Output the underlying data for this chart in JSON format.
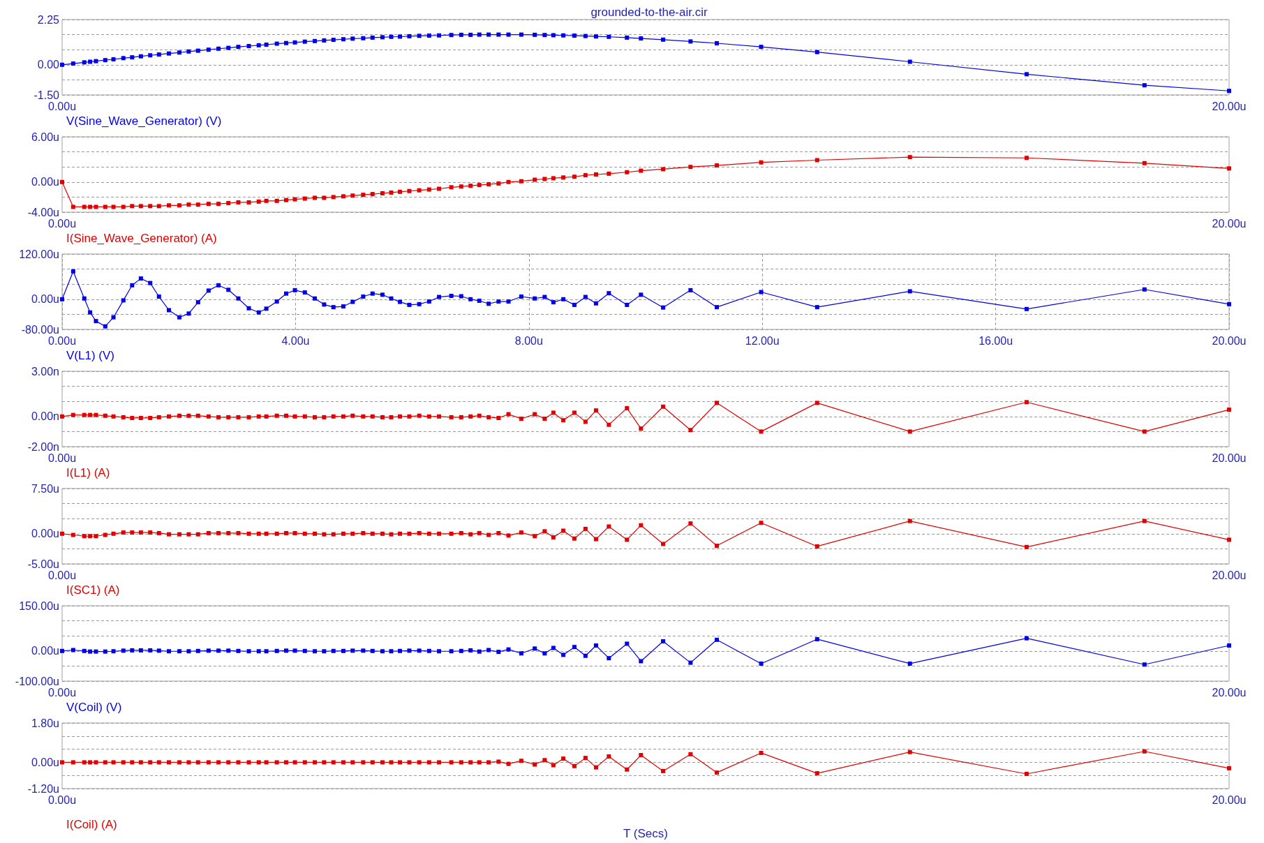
{
  "chart_data": [
    {
      "type": "line",
      "title": "grounded-to-the-air.cir",
      "marker": "square",
      "grid": "y",
      "legend": "bottom left",
      "xlim": [
        0,
        20
      ],
      "xticks": [
        {
          "value": 0,
          "label": "0.00u"
        },
        {
          "value": 20,
          "label": "20.00u"
        }
      ],
      "ylim": [
        -1.5,
        2.25
      ],
      "yticks": [
        {
          "value": -1.5,
          "label": "-1.50"
        },
        {
          "value": -0.75,
          "label": null
        },
        {
          "value": 0,
          "label": "0.00"
        },
        {
          "value": 0.75,
          "label": null
        },
        {
          "value": 1.5,
          "label": null
        },
        {
          "value": 2.25,
          "label": "2.25"
        }
      ],
      "x": [
        0,
        0.19,
        0.38,
        0.48,
        0.58,
        0.74,
        0.88,
        1.05,
        1.2,
        1.35,
        1.51,
        1.66,
        1.83,
        2.01,
        2.17,
        2.33,
        2.51,
        2.68,
        2.85,
        3.02,
        3.2,
        3.37,
        3.5,
        3.68,
        3.84,
        3.99,
        4.16,
        4.33,
        4.49,
        4.65,
        4.82,
        4.98,
        5.16,
        5.32,
        5.49,
        5.64,
        5.79,
        5.95,
        6.12,
        6.29,
        6.46,
        6.67,
        6.84,
        7.0,
        7.15,
        7.31,
        7.48,
        7.65,
        7.87,
        8.1,
        8.27,
        8.42,
        8.59,
        8.78,
        8.97,
        9.15,
        9.37,
        9.68,
        9.92,
        10.3,
        10.77,
        11.22,
        11.98,
        12.94,
        14.53,
        16.53,
        18.55,
        20
      ],
      "series": [
        {
          "name": "V(Sine_Wave_Generator) (V)",
          "color": "#0000e6",
          "values": [
            0,
            0.06,
            0.12,
            0.15,
            0.18,
            0.23,
            0.27,
            0.33,
            0.37,
            0.42,
            0.47,
            0.51,
            0.56,
            0.61,
            0.66,
            0.7,
            0.75,
            0.8,
            0.84,
            0.89,
            0.93,
            0.97,
            1.0,
            1.05,
            1.08,
            1.11,
            1.15,
            1.18,
            1.21,
            1.24,
            1.27,
            1.3,
            1.32,
            1.35,
            1.37,
            1.39,
            1.4,
            1.42,
            1.44,
            1.45,
            1.46,
            1.48,
            1.49,
            1.49,
            1.5,
            1.5,
            1.5,
            1.5,
            1.5,
            1.49,
            1.48,
            1.47,
            1.46,
            1.45,
            1.43,
            1.41,
            1.39,
            1.35,
            1.31,
            1.25,
            1.16,
            1.07,
            0.89,
            0.63,
            0.15,
            -0.47,
            -1.02,
            -1.3
          ]
        }
      ]
    },
    {
      "type": "line",
      "marker": "square",
      "grid": "y",
      "legend": "bottom left",
      "xlim": [
        0,
        20
      ],
      "xticks": [
        {
          "value": 0,
          "label": "0.00u"
        },
        {
          "value": 20,
          "label": "20.00u"
        }
      ],
      "ylim": [
        -4,
        6
      ],
      "yticks": [
        {
          "value": -4,
          "label": "-4.00u"
        },
        {
          "value": -2,
          "label": null
        },
        {
          "value": 0,
          "label": "0.00u"
        },
        {
          "value": 2,
          "label": null
        },
        {
          "value": 4,
          "label": null
        },
        {
          "value": 6,
          "label": "6.00u"
        }
      ],
      "x": [
        0,
        0.19,
        0.38,
        0.48,
        0.58,
        0.74,
        0.88,
        1.05,
        1.2,
        1.35,
        1.51,
        1.66,
        1.83,
        2.01,
        2.17,
        2.33,
        2.51,
        2.68,
        2.85,
        3.02,
        3.2,
        3.37,
        3.5,
        3.68,
        3.84,
        3.99,
        4.16,
        4.33,
        4.49,
        4.65,
        4.82,
        4.98,
        5.16,
        5.32,
        5.49,
        5.64,
        5.79,
        5.95,
        6.12,
        6.29,
        6.46,
        6.67,
        6.84,
        7.0,
        7.15,
        7.31,
        7.48,
        7.65,
        7.87,
        8.1,
        8.27,
        8.42,
        8.59,
        8.78,
        8.97,
        9.15,
        9.37,
        9.68,
        9.92,
        10.3,
        10.77,
        11.22,
        11.98,
        12.94,
        14.53,
        16.53,
        18.55,
        20
      ],
      "series": [
        {
          "name": "I(Sine_Wave_Generator) (A)",
          "color": "#e00000",
          "values": [
            0,
            -3.3,
            -3.3,
            -3.3,
            -3.3,
            -3.3,
            -3.3,
            -3.3,
            -3.2,
            -3.2,
            -3.2,
            -3.2,
            -3.1,
            -3.1,
            -3.0,
            -3.0,
            -2.9,
            -2.9,
            -2.8,
            -2.7,
            -2.7,
            -2.6,
            -2.5,
            -2.5,
            -2.4,
            -2.3,
            -2.2,
            -2.1,
            -2.1,
            -2.0,
            -1.9,
            -1.8,
            -1.7,
            -1.6,
            -1.5,
            -1.4,
            -1.3,
            -1.2,
            -1.1,
            -1.0,
            -0.9,
            -0.7,
            -0.6,
            -0.5,
            -0.4,
            -0.3,
            -0.2,
            0,
            0.1,
            0.3,
            0.4,
            0.5,
            0.6,
            0.7,
            0.9,
            1.0,
            1.1,
            1.3,
            1.5,
            1.7,
            2.0,
            2.2,
            2.6,
            2.9,
            3.3,
            3.2,
            2.5,
            1.8
          ]
        }
      ]
    },
    {
      "type": "line",
      "marker": "square",
      "grid": true,
      "legend": "bottom left",
      "xlim": [
        0,
        20
      ],
      "xticks": [
        {
          "value": 0,
          "label": "0.00u"
        },
        {
          "value": 4,
          "label": "4.00u"
        },
        {
          "value": 8,
          "label": "8.00u"
        },
        {
          "value": 12,
          "label": "12.00u"
        },
        {
          "value": 16,
          "label": "16.00u"
        },
        {
          "value": 20,
          "label": "20.00u"
        }
      ],
      "ylim": [
        -80,
        120
      ],
      "yticks": [
        {
          "value": -80,
          "label": "-80.00u"
        },
        {
          "value": -40,
          "label": null
        },
        {
          "value": 0,
          "label": "0.00u"
        },
        {
          "value": 40,
          "label": null
        },
        {
          "value": 80,
          "label": null
        },
        {
          "value": 120,
          "label": "120.00u"
        }
      ],
      "x": [
        0,
        0.19,
        0.38,
        0.48,
        0.58,
        0.74,
        0.88,
        1.05,
        1.2,
        1.35,
        1.51,
        1.66,
        1.83,
        2.01,
        2.17,
        2.33,
        2.51,
        2.68,
        2.85,
        3.02,
        3.2,
        3.37,
        3.5,
        3.68,
        3.84,
        3.99,
        4.16,
        4.33,
        4.49,
        4.65,
        4.82,
        4.98,
        5.16,
        5.32,
        5.49,
        5.64,
        5.79,
        5.95,
        6.12,
        6.29,
        6.46,
        6.67,
        6.84,
        7.0,
        7.15,
        7.31,
        7.48,
        7.65,
        7.87,
        8.1,
        8.27,
        8.42,
        8.59,
        8.78,
        8.97,
        9.15,
        9.37,
        9.68,
        9.92,
        10.3,
        10.77,
        11.22,
        11.98,
        12.94,
        14.53,
        16.53,
        18.55,
        20
      ],
      "series": [
        {
          "name": "V(L1) (V)",
          "color": "#0000e6",
          "values": [
            0,
            74,
            2,
            -35,
            -58,
            -72,
            -48,
            -3,
            37,
            55,
            43,
            7,
            -29,
            -48,
            -38,
            -8,
            23,
            37,
            25,
            2,
            -24,
            -35,
            -25,
            -6,
            15,
            24,
            18,
            2,
            -14,
            -21,
            -19,
            -7,
            7,
            15,
            12,
            2,
            -7,
            -15,
            -13,
            -6,
            6,
            9,
            8,
            0,
            -4,
            -12,
            -6,
            -6,
            7,
            2,
            6,
            -8,
            0,
            -15,
            6,
            -11,
            16,
            -15,
            12,
            -22,
            24,
            -21,
            19,
            -21,
            21,
            -26,
            26,
            -13
          ]
        }
      ]
    },
    {
      "type": "line",
      "marker": "square",
      "grid": "y",
      "legend": "bottom left",
      "xlim": [
        0,
        20
      ],
      "xticks": [
        {
          "value": 0,
          "label": "0.00u"
        },
        {
          "value": 20,
          "label": "20.00u"
        }
      ],
      "ylim": [
        -2,
        3
      ],
      "yticks": [
        {
          "value": -2,
          "label": "-2.00n"
        },
        {
          "value": -1,
          "label": null
        },
        {
          "value": 0,
          "label": "0.00n"
        },
        {
          "value": 1,
          "label": null
        },
        {
          "value": 2,
          "label": null
        },
        {
          "value": 3,
          "label": "3.00n"
        }
      ],
      "x": [
        0,
        0.19,
        0.38,
        0.48,
        0.58,
        0.74,
        0.88,
        1.05,
        1.2,
        1.35,
        1.51,
        1.66,
        1.83,
        2.01,
        2.17,
        2.33,
        2.51,
        2.68,
        2.85,
        3.02,
        3.2,
        3.37,
        3.5,
        3.68,
        3.84,
        3.99,
        4.16,
        4.33,
        4.49,
        4.65,
        4.82,
        4.98,
        5.16,
        5.32,
        5.49,
        5.64,
        5.79,
        5.95,
        6.12,
        6.29,
        6.46,
        6.67,
        6.84,
        7.0,
        7.15,
        7.31,
        7.48,
        7.65,
        7.87,
        8.1,
        8.27,
        8.42,
        8.59,
        8.78,
        8.97,
        9.15,
        9.37,
        9.68,
        9.92,
        10.3,
        10.77,
        11.22,
        11.98,
        12.94,
        14.53,
        16.53,
        18.55,
        20
      ],
      "series": [
        {
          "name": "I(L1) (A)",
          "color": "#e00000",
          "values": [
            0,
            0.1,
            0.1,
            0.1,
            0.1,
            0.05,
            0,
            -0.05,
            -0.1,
            -0.1,
            -0.1,
            -0.05,
            0,
            0.05,
            0.05,
            0.05,
            0,
            -0.05,
            -0.05,
            -0.05,
            -0.05,
            0,
            0,
            0.05,
            0.05,
            0,
            0,
            -0.05,
            -0.05,
            0,
            0,
            0.05,
            0,
            0,
            -0.05,
            -0.05,
            0,
            0,
            0.05,
            0,
            0,
            -0.05,
            -0.05,
            0,
            0.05,
            -0.05,
            -0.1,
            0.15,
            -0.15,
            0.15,
            -0.15,
            0.25,
            -0.25,
            0.25,
            -0.35,
            0.4,
            -0.55,
            0.55,
            -0.8,
            0.65,
            -0.9,
            0.9,
            -1.0,
            0.9,
            -1.0,
            0.95,
            -1.0,
            0.45
          ]
        }
      ]
    },
    {
      "type": "line",
      "marker": "square",
      "grid": "y",
      "legend": "bottom left",
      "xlim": [
        0,
        20
      ],
      "xticks": [
        {
          "value": 0,
          "label": "0.00u"
        },
        {
          "value": 20,
          "label": "20.00u"
        }
      ],
      "ylim": [
        -5,
        7.5
      ],
      "yticks": [
        {
          "value": -5,
          "label": "-5.00u"
        },
        {
          "value": -2.5,
          "label": null
        },
        {
          "value": 0,
          "label": "0.00u"
        },
        {
          "value": 2.5,
          "label": null
        },
        {
          "value": 5,
          "label": null
        },
        {
          "value": 7.5,
          "label": "7.50u"
        }
      ],
      "x": [
        0,
        0.19,
        0.38,
        0.48,
        0.58,
        0.74,
        0.88,
        1.05,
        1.2,
        1.35,
        1.51,
        1.66,
        1.83,
        2.01,
        2.17,
        2.33,
        2.51,
        2.68,
        2.85,
        3.02,
        3.2,
        3.37,
        3.5,
        3.68,
        3.84,
        3.99,
        4.16,
        4.33,
        4.49,
        4.65,
        4.82,
        4.98,
        5.16,
        5.32,
        5.49,
        5.64,
        5.79,
        5.95,
        6.12,
        6.29,
        6.46,
        6.67,
        6.84,
        7.0,
        7.15,
        7.31,
        7.48,
        7.65,
        7.87,
        8.1,
        8.27,
        8.42,
        8.59,
        8.78,
        8.97,
        9.15,
        9.37,
        9.68,
        9.92,
        10.3,
        10.77,
        11.22,
        11.98,
        12.94,
        14.53,
        16.53,
        18.55,
        20
      ],
      "series": [
        {
          "name": "I(SC1) (A)",
          "color": "#e00000",
          "values": [
            0,
            -0.2,
            -0.4,
            -0.4,
            -0.4,
            -0.2,
            0,
            0.2,
            0.2,
            0.2,
            0.2,
            0.1,
            -0.1,
            -0.1,
            -0.1,
            -0.1,
            0.1,
            0.1,
            0.1,
            0.1,
            0,
            0,
            0,
            0,
            0.1,
            0.1,
            0,
            0,
            -0.1,
            -0.1,
            0,
            0,
            0.1,
            0,
            0,
            -0.1,
            0,
            0,
            0.1,
            0,
            0,
            0,
            0.1,
            -0.1,
            0.1,
            -0.2,
            0.1,
            -0.3,
            0.2,
            -0.4,
            0.4,
            -0.6,
            0.5,
            -0.8,
            0.8,
            -0.9,
            1.2,
            -1.0,
            1.4,
            -1.7,
            1.7,
            -2.0,
            1.8,
            -2.1,
            2.1,
            -2.2,
            2.1,
            -1.0
          ]
        }
      ]
    },
    {
      "type": "line",
      "marker": "square",
      "grid": "y",
      "legend": "bottom left",
      "xlim": [
        0,
        20
      ],
      "xticks": [
        {
          "value": 0,
          "label": "0.00u"
        },
        {
          "value": 20,
          "label": "20.00u"
        }
      ],
      "ylim": [
        -100,
        150
      ],
      "yticks": [
        {
          "value": -100,
          "label": "-100.00u"
        },
        {
          "value": -50,
          "label": null
        },
        {
          "value": 0,
          "label": "0.00u"
        },
        {
          "value": 50,
          "label": null
        },
        {
          "value": 100,
          "label": null
        },
        {
          "value": 150,
          "label": "150.00u"
        }
      ],
      "x": [
        0,
        0.19,
        0.38,
        0.48,
        0.58,
        0.74,
        0.88,
        1.05,
        1.2,
        1.35,
        1.51,
        1.66,
        1.83,
        2.01,
        2.17,
        2.33,
        2.51,
        2.68,
        2.85,
        3.02,
        3.2,
        3.37,
        3.5,
        3.68,
        3.84,
        3.99,
        4.16,
        4.33,
        4.49,
        4.65,
        4.82,
        4.98,
        5.16,
        5.32,
        5.49,
        5.64,
        5.79,
        5.95,
        6.12,
        6.29,
        6.46,
        6.67,
        6.84,
        7.0,
        7.15,
        7.31,
        7.48,
        7.65,
        7.87,
        8.1,
        8.27,
        8.42,
        8.59,
        8.78,
        8.97,
        9.15,
        9.37,
        9.68,
        9.92,
        10.3,
        10.77,
        11.22,
        11.98,
        12.94,
        14.53,
        16.53,
        18.55,
        20
      ],
      "series": [
        {
          "name": "V(Coil) (V)",
          "color": "#0000e6",
          "values": [
            0,
            3,
            0,
            -2,
            -2,
            -2,
            -1,
            1,
            2,
            2,
            2,
            1,
            -1,
            -1,
            -1,
            0,
            1,
            1,
            1,
            0,
            -1,
            -1,
            -1,
            0,
            1,
            1,
            0,
            -1,
            -1,
            0,
            0,
            1,
            1,
            0,
            -1,
            -1,
            0,
            1,
            1,
            0,
            -1,
            -1,
            0,
            2,
            -2,
            3,
            -3,
            5,
            -8,
            8,
            -8,
            10,
            -13,
            13,
            -16,
            18,
            -24,
            24,
            -34,
            32,
            -39,
            37,
            -42,
            39,
            -42,
            42,
            -45,
            18
          ]
        }
      ]
    },
    {
      "type": "line",
      "xlabel": "T (Secs)",
      "marker": "square",
      "grid": "y",
      "legend": "bottom left",
      "xlim": [
        0,
        20
      ],
      "xticks": [
        {
          "value": 0,
          "label": "0.00u"
        },
        {
          "value": 20,
          "label": "20.00u"
        }
      ],
      "ylim": [
        -1.2,
        1.8
      ],
      "yticks": [
        {
          "value": -1.2,
          "label": "-1.20u"
        },
        {
          "value": -0.6,
          "label": null
        },
        {
          "value": 0,
          "label": "0.00u"
        },
        {
          "value": 0.6,
          "label": null
        },
        {
          "value": 1.2,
          "label": null
        },
        {
          "value": 1.8,
          "label": "1.80u"
        }
      ],
      "x": [
        0,
        0.19,
        0.38,
        0.48,
        0.58,
        0.74,
        0.88,
        1.05,
        1.2,
        1.35,
        1.51,
        1.66,
        1.83,
        2.01,
        2.17,
        2.33,
        2.51,
        2.68,
        2.85,
        3.02,
        3.2,
        3.37,
        3.5,
        3.68,
        3.84,
        3.99,
        4.16,
        4.33,
        4.49,
        4.65,
        4.82,
        4.98,
        5.16,
        5.32,
        5.49,
        5.64,
        5.79,
        5.95,
        6.12,
        6.29,
        6.46,
        6.67,
        6.84,
        7.0,
        7.15,
        7.31,
        7.48,
        7.65,
        7.87,
        8.1,
        8.27,
        8.42,
        8.59,
        8.78,
        8.97,
        9.15,
        9.37,
        9.68,
        9.92,
        10.3,
        10.77,
        11.22,
        11.98,
        12.94,
        14.53,
        16.53,
        18.55,
        20
      ],
      "series": [
        {
          "name": "I(Coil) (A)",
          "color": "#e00000",
          "values": [
            0,
            0,
            0,
            0,
            0,
            0,
            0,
            0,
            0,
            0,
            0,
            0,
            0,
            0,
            0,
            0,
            0,
            0,
            0,
            0,
            0,
            0,
            0,
            0,
            0,
            0,
            0,
            0,
            0,
            0,
            0,
            0,
            0,
            0,
            0,
            0,
            0,
            0,
            0,
            0,
            0,
            0,
            0,
            0,
            0,
            0,
            0.03,
            -0.07,
            0.07,
            -0.1,
            0.1,
            -0.13,
            0.17,
            -0.17,
            0.2,
            -0.23,
            0.27,
            -0.33,
            0.33,
            -0.4,
            0.37,
            -0.47,
            0.43,
            -0.5,
            0.47,
            -0.53,
            0.5,
            -0.27
          ]
        }
      ]
    }
  ]
}
